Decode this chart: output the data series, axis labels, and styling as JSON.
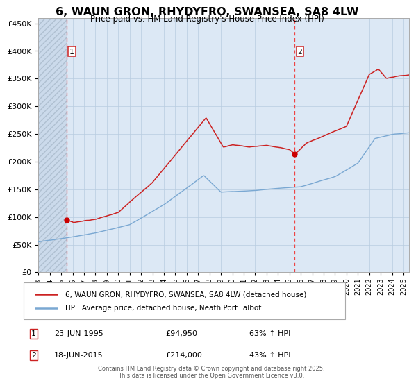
{
  "title": "6, WAUN GRON, RHYDYFRO, SWANSEA, SA8 4LW",
  "subtitle": "Price paid vs. HM Land Registry's House Price Index (HPI)",
  "legend_line1": "6, WAUN GRON, RHYDYFRO, SWANSEA, SA8 4LW (detached house)",
  "legend_line2": "HPI: Average price, detached house, Neath Port Talbot",
  "annotation1_label": "1",
  "annotation1_date": "23-JUN-1995",
  "annotation1_price": "£94,950",
  "annotation1_hpi": "63% ↑ HPI",
  "annotation2_label": "2",
  "annotation2_date": "18-JUN-2015",
  "annotation2_price": "£214,000",
  "annotation2_hpi": "43% ↑ HPI",
  "footer": "Contains HM Land Registry data © Crown copyright and database right 2025.\nThis data is licensed under the Open Government Licence v3.0.",
  "sale1_year": 1995.47,
  "sale1_value": 94950,
  "sale2_year": 2015.47,
  "sale2_value": 214000,
  "vline1_year": 1995.47,
  "vline2_year": 2015.47,
  "xlim": [
    1993.0,
    2025.5
  ],
  "ylim": [
    0,
    460000
  ],
  "yticks": [
    0,
    50000,
    100000,
    150000,
    200000,
    250000,
    300000,
    350000,
    400000,
    450000
  ],
  "ytick_labels": [
    "£0",
    "£50K",
    "£100K",
    "£150K",
    "£200K",
    "£250K",
    "£300K",
    "£350K",
    "£400K",
    "£450K"
  ],
  "xtick_years": [
    1993,
    1994,
    1995,
    1996,
    1997,
    1998,
    1999,
    2000,
    2001,
    2002,
    2003,
    2004,
    2005,
    2006,
    2007,
    2008,
    2009,
    2010,
    2011,
    2012,
    2013,
    2014,
    2015,
    2016,
    2017,
    2018,
    2019,
    2020,
    2021,
    2022,
    2023,
    2024,
    2025
  ],
  "hpi_color": "#7aa8d2",
  "property_color": "#cc2222",
  "dot_color": "#cc0000",
  "vline_color": "#ee4444",
  "bg_color": "#dce8f5",
  "hatch_color": "#c8d8ea",
  "grid_color": "#b8cce0",
  "title_fontsize": 12,
  "subtitle_fontsize": 9,
  "annot_box_color": "#cc2222"
}
